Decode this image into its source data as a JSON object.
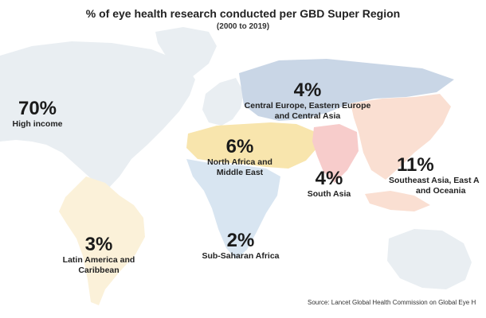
{
  "title": "% of eye health research conducted per GBD Super Region",
  "subtitle": "(2000 to 2019)",
  "regions": [
    {
      "id": "high-income",
      "percent": "70%",
      "name_lines": [
        "High income"
      ],
      "color": "#e9eef2"
    },
    {
      "id": "central-europe",
      "percent": "4%",
      "name_lines": [
        "Central Europe, Eastern Europe",
        "and Central Asia"
      ],
      "color": "#c9d6e6"
    },
    {
      "id": "north-africa",
      "percent": "6%",
      "name_lines": [
        "North Africa and",
        "Middle East"
      ],
      "color": "#f8e5ad"
    },
    {
      "id": "south-asia",
      "percent": "4%",
      "name_lines": [
        "South Asia"
      ],
      "color": "#f7cccb"
    },
    {
      "id": "southeast-asia",
      "percent": "11%",
      "name_lines": [
        "Southeast Asia, East A",
        "and Oceania"
      ],
      "color": "#fadfd2"
    },
    {
      "id": "latin-america",
      "percent": "3%",
      "name_lines": [
        "Latin America and",
        "Caribbean"
      ],
      "color": "#fbf1d9"
    },
    {
      "id": "sub-saharan",
      "percent": "2%",
      "name_lines": [
        "Sub-Saharan Africa"
      ],
      "color": "#d8e5f1"
    }
  ],
  "source": "Source: Lancet Global Health Commission on Global Eye H"
}
